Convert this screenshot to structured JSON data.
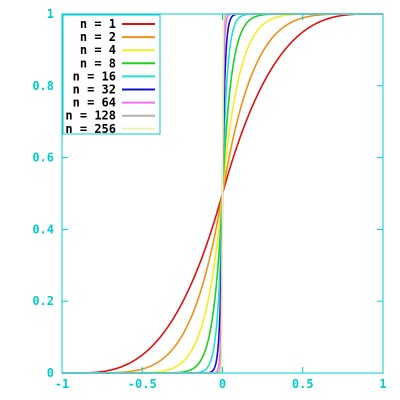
{
  "chart_data": {
    "type": "line",
    "title": "",
    "xlabel": "",
    "ylabel": "",
    "xlim": [
      -1,
      1
    ],
    "ylim": [
      0,
      1
    ],
    "x_ticks": [
      -1,
      -0.5,
      0,
      0.5,
      1
    ],
    "x_tick_labels": [
      "-1",
      "-0.5",
      "0",
      "0.5",
      "1"
    ],
    "y_ticks": [
      0,
      0.2,
      0.4,
      0.6,
      0.8,
      1
    ],
    "y_tick_labels": [
      "0",
      "0.2",
      "0.4",
      "0.6",
      "0.8",
      "1"
    ],
    "grid": false,
    "legend_position": "top-left",
    "axis_color": "#00cccc",
    "series": [
      {
        "name": "n = 1",
        "n": 1,
        "color": "#e01010"
      },
      {
        "name": "n = 2",
        "n": 2,
        "color": "#f0901a"
      },
      {
        "name": "n = 4",
        "n": 4,
        "color": "#f0f020"
      },
      {
        "name": "n = 8",
        "n": 8,
        "color": "#20d020"
      },
      {
        "name": "n = 16",
        "n": 16,
        "color": "#20e0d0"
      },
      {
        "name": "n = 32",
        "n": 32,
        "color": "#1010d0"
      },
      {
        "name": "n = 64",
        "n": 64,
        "color": "#f070f0"
      },
      {
        "name": "n = 128",
        "n": 128,
        "color": "#b0b0b0"
      },
      {
        "name": "n = 256",
        "n": 256,
        "color": "#f0f0b0"
      }
    ]
  }
}
